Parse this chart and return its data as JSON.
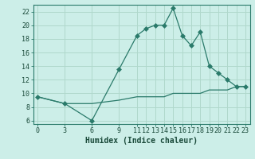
{
  "title": "",
  "xlabel": "Humidex (Indice chaleur)",
  "background_color": "#cceee8",
  "grid_color": "#b0d8cc",
  "line_color": "#2a7a6a",
  "xlim": [
    -0.5,
    23.5
  ],
  "ylim": [
    5.5,
    23.0
  ],
  "xticks": [
    0,
    3,
    6,
    9,
    11,
    12,
    13,
    14,
    15,
    16,
    17,
    18,
    19,
    20,
    21,
    22,
    23
  ],
  "yticks": [
    6,
    8,
    10,
    12,
    14,
    16,
    18,
    20,
    22
  ],
  "line1_x": [
    0,
    3,
    6,
    9,
    11,
    12,
    13,
    14,
    15,
    16,
    17,
    18,
    19,
    20,
    21,
    22,
    23
  ],
  "line1_y": [
    9.5,
    8.5,
    6.0,
    13.5,
    18.5,
    19.5,
    20.0,
    20.0,
    22.5,
    18.5,
    17.0,
    19.0,
    14.0,
    13.0,
    12.0,
    11.0,
    11.0
  ],
  "line2_x": [
    0,
    3,
    6,
    9,
    11,
    12,
    13,
    14,
    15,
    16,
    17,
    18,
    19,
    20,
    21,
    22,
    23
  ],
  "line2_y": [
    9.5,
    8.5,
    8.5,
    9.0,
    9.5,
    9.5,
    9.5,
    9.5,
    10.0,
    10.0,
    10.0,
    10.0,
    10.5,
    10.5,
    10.5,
    11.0,
    11.0
  ],
  "tick_fontsize": 6.0,
  "xlabel_fontsize": 7.0,
  "marker_size": 3.0
}
